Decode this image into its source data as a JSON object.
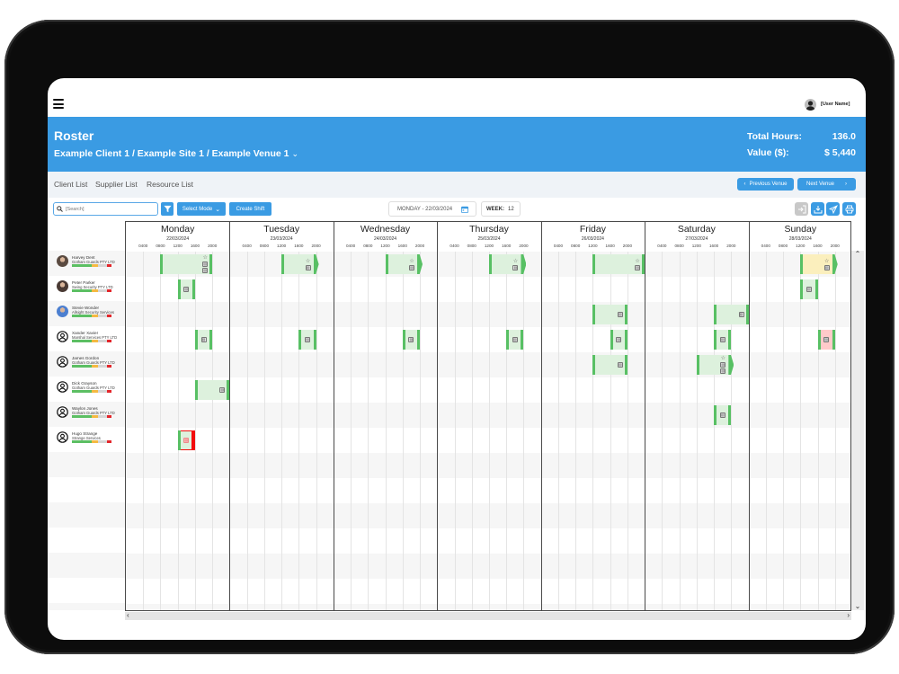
{
  "app": {
    "menu_icon": "hamburger-icon",
    "user_name": "[User Name]"
  },
  "header": {
    "title": "Roster",
    "breadcrumb": "Example Client 1 / Example Site 1 / Example Venue 1",
    "total_hours_label": "Total Hours:",
    "total_hours": "136.0",
    "value_label": "Value ($):",
    "value": "$ 5,440",
    "color": "#3a9be3"
  },
  "tabs": [
    {
      "label": "Client List"
    },
    {
      "label": "Supplier List"
    },
    {
      "label": "Resource List"
    }
  ],
  "venue_nav": {
    "previous": "Previous Venue",
    "next": "Next Venue"
  },
  "toolbar": {
    "search_placeholder": "[Search]",
    "select_mode": "Select Mode",
    "create_shift": "Create Shift",
    "date": "MONDAY - 22/03/2024",
    "week_label": "WEEK:",
    "week": "12",
    "actions": [
      {
        "name": "login-icon",
        "enabled": false
      },
      {
        "name": "download-icon",
        "enabled": true
      },
      {
        "name": "send-icon",
        "enabled": true
      },
      {
        "name": "print-icon",
        "enabled": true
      }
    ]
  },
  "days": [
    {
      "name": "Monday",
      "date": "22/03/2024"
    },
    {
      "name": "Tuesday",
      "date": "23/03/2024"
    },
    {
      "name": "Wednesday",
      "date": "24/03/2024"
    },
    {
      "name": "Thursday",
      "date": "25/03/2024"
    },
    {
      "name": "Friday",
      "date": "26/03/2024"
    },
    {
      "name": "Saturday",
      "date": "27/03/2024"
    },
    {
      "name": "Sunday",
      "date": "28/03/2024"
    }
  ],
  "time_ticks": [
    "0400",
    "0800",
    "1200",
    "1600",
    "2000"
  ],
  "capacity_bar": [
    {
      "color": "#5cbf63",
      "width": 22
    },
    {
      "color": "#f5b942",
      "width": 7
    },
    {
      "color": "#d6d6d6",
      "width": 10
    },
    {
      "color": "#e3262b",
      "width": 5
    }
  ],
  "resources": [
    {
      "name": "Harvey Dent",
      "company": "Gotham Guards PTY LTD",
      "avatar": "photo",
      "avatar_color": "#5a4a40"
    },
    {
      "name": "Peter Parker",
      "company": "Swing Security PTY LTD",
      "avatar": "photo",
      "avatar_color": "#4a3a34"
    },
    {
      "name": "Stevie Wonder",
      "company": "Allsight Security Services",
      "avatar": "photo",
      "avatar_color": "#4c7fd0"
    },
    {
      "name": "Xander Xavier",
      "company": "Marshal Services PTY LTD",
      "avatar": "default"
    },
    {
      "name": "James Gordon",
      "company": "Gotham Guards PTY LTD",
      "avatar": "default"
    },
    {
      "name": "Dick Grayson",
      "company": "Gotham Guards PTY LTD",
      "avatar": "default"
    },
    {
      "name": "Waylon Jones",
      "company": "Gotham Guards PTY LTD",
      "avatar": "default"
    },
    {
      "name": "Hugo Strange",
      "company": "Strange Services",
      "avatar": "default"
    }
  ],
  "shift_colors": {
    "normal": "#ddf1dd",
    "yellow": "#fbefbd",
    "pink": "#ffcaca",
    "bar": "#58c064",
    "alert": "#f20d0d"
  },
  "shifts": [
    {
      "row": 0,
      "day": 0,
      "start": 8,
      "end": 20,
      "style": "normal",
      "overnight": false,
      "icons": [
        "star",
        "doc",
        "doc"
      ]
    },
    {
      "row": 0,
      "day": 1,
      "start": 12,
      "end": 20,
      "style": "normal",
      "overnight": true,
      "icons": [
        "star",
        "doc"
      ]
    },
    {
      "row": 0,
      "day": 2,
      "start": 12,
      "end": 20,
      "style": "normal",
      "overnight": true,
      "icons": [
        "star",
        "doc"
      ]
    },
    {
      "row": 0,
      "day": 3,
      "start": 12,
      "end": 20,
      "style": "normal",
      "overnight": true,
      "icons": [
        "star",
        "doc"
      ]
    },
    {
      "row": 0,
      "day": 4,
      "start": 12,
      "end": 24,
      "style": "normal",
      "overnight": false,
      "icons": [
        "star",
        "doc"
      ]
    },
    {
      "row": 0,
      "day": 6,
      "start": 12,
      "end": 20,
      "style": "yellow",
      "overnight": true,
      "icons": [
        "star",
        "doc"
      ]
    },
    {
      "row": 1,
      "day": 0,
      "start": 12,
      "end": 16,
      "style": "normal",
      "overnight": false,
      "icons": [
        "doc"
      ]
    },
    {
      "row": 1,
      "day": 6,
      "start": 12,
      "end": 16,
      "style": "normal",
      "overnight": false,
      "icons": [
        "doc"
      ]
    },
    {
      "row": 2,
      "day": 4,
      "start": 12,
      "end": 20,
      "style": "normal",
      "overnight": false,
      "icons": [
        "doc"
      ]
    },
    {
      "row": 2,
      "day": 5,
      "start": 16,
      "end": 24,
      "style": "normal",
      "overnight": false,
      "icons": [
        "doc"
      ]
    },
    {
      "row": 3,
      "day": 0,
      "start": 16,
      "end": 20,
      "style": "normal",
      "overnight": false,
      "icons": [
        "doc"
      ]
    },
    {
      "row": 3,
      "day": 1,
      "start": 16,
      "end": 20,
      "style": "normal",
      "overnight": false,
      "icons": [
        "doc"
      ]
    },
    {
      "row": 3,
      "day": 2,
      "start": 16,
      "end": 20,
      "style": "normal",
      "overnight": false,
      "icons": [
        "doc"
      ]
    },
    {
      "row": 3,
      "day": 3,
      "start": 16,
      "end": 20,
      "style": "normal",
      "overnight": false,
      "icons": [
        "doc"
      ]
    },
    {
      "row": 3,
      "day": 4,
      "start": 16,
      "end": 20,
      "style": "normal",
      "overnight": false,
      "icons": [
        "doc"
      ]
    },
    {
      "row": 3,
      "day": 5,
      "start": 16,
      "end": 20,
      "style": "normal",
      "overnight": false,
      "icons": [
        "doc"
      ]
    },
    {
      "row": 3,
      "day": 6,
      "start": 16,
      "end": 20,
      "style": "pink",
      "overnight": false,
      "icons": [
        "doc"
      ]
    },
    {
      "row": 4,
      "day": 4,
      "start": 12,
      "end": 20,
      "style": "normal",
      "overnight": false,
      "icons": [
        "doc"
      ]
    },
    {
      "row": 4,
      "day": 5,
      "start": 12,
      "end": 20,
      "style": "normal",
      "overnight": true,
      "icons": [
        "star",
        "doc",
        "doc"
      ]
    },
    {
      "row": 5,
      "day": 0,
      "start": 16,
      "end": 24,
      "style": "normal",
      "overnight": false,
      "icons": [
        "doc"
      ]
    },
    {
      "row": 6,
      "day": 5,
      "start": 16,
      "end": 20,
      "style": "normal",
      "overnight": false,
      "icons": [
        "doc"
      ]
    },
    {
      "row": 7,
      "day": 0,
      "start": 12,
      "end": 16,
      "style": "alert",
      "overnight": false,
      "icons": [
        "doc"
      ]
    }
  ]
}
